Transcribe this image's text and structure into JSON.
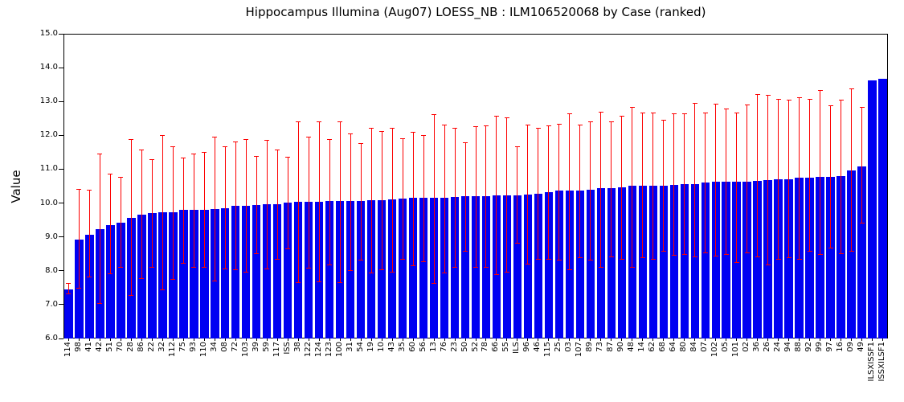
{
  "figure": {
    "title": "Hippocampus Illumina (Aug07) LOESS_NB : ILM106520068 by Case (ranked)",
    "ylabel": "Value"
  },
  "chart_data": {
    "type": "bar",
    "title": "Hippocampus Illumina (Aug07) LOESS_NB : ILM106520068 by Case (ranked)",
    "xlabel": "",
    "ylabel": "Value",
    "ylim": [
      6.0,
      15.0
    ],
    "ytick_labels": [
      "6.0",
      "7.0",
      "8.0",
      "9.0",
      "10.0",
      "11.0",
      "12.0",
      "13.0",
      "14.0",
      "15.0"
    ],
    "grid": false,
    "legend": "none",
    "bar_color": "#0000f2",
    "error_color": "#fd0000",
    "categories": [
      "114",
      "98",
      "41",
      "42",
      "51",
      "70",
      "28",
      "86",
      "22",
      "32",
      "112",
      "75",
      "93",
      "110",
      "34",
      "08",
      "72",
      "103",
      "39",
      "59",
      "117",
      "ISS",
      "38",
      "122",
      "124",
      "123",
      "100",
      "31",
      "54",
      "19",
      "10",
      "43",
      "35",
      "60",
      "56",
      "13",
      "76",
      "23",
      "50",
      "52",
      "78",
      "66",
      "55",
      "ILS",
      "96",
      "46",
      "115",
      "25",
      "03",
      "107",
      "89",
      "73",
      "87",
      "90",
      "48",
      "14",
      "62",
      "68",
      "64",
      "80",
      "84",
      "07",
      "102",
      "05",
      "101",
      "02",
      "36",
      "26",
      "24",
      "94",
      "88",
      "92",
      "99",
      "97",
      "16",
      "09",
      "49",
      "ILSXISSF1",
      "ISSXILSF1"
    ],
    "values": [
      7.45,
      8.93,
      9.06,
      9.22,
      9.36,
      9.41,
      9.57,
      9.66,
      9.7,
      9.72,
      9.73,
      9.79,
      9.81,
      9.81,
      9.83,
      9.85,
      9.91,
      9.92,
      9.95,
      9.96,
      9.97,
      10.01,
      10.03,
      10.03,
      10.04,
      10.05,
      10.05,
      10.06,
      10.06,
      10.09,
      10.09,
      10.11,
      10.13,
      10.15,
      10.15,
      10.15,
      10.16,
      10.17,
      10.2,
      10.21,
      10.21,
      10.22,
      10.23,
      10.23,
      10.24,
      10.28,
      10.32,
      10.36,
      10.36,
      10.38,
      10.4,
      10.43,
      10.43,
      10.47,
      10.51,
      10.51,
      10.51,
      10.52,
      10.54,
      10.55,
      10.57,
      10.6,
      10.62,
      10.63,
      10.63,
      10.63,
      10.65,
      10.68,
      10.69,
      10.71,
      10.74,
      10.76,
      10.77,
      10.77,
      10.79,
      10.96,
      11.07,
      13.62,
      13.66
    ],
    "error_top": [
      7.62,
      10.4,
      10.37,
      11.44,
      10.85,
      10.75,
      11.87,
      11.56,
      11.28,
      11.99,
      11.67,
      11.34,
      11.46,
      11.5,
      11.96,
      11.66,
      11.8,
      11.88,
      11.37,
      11.85,
      11.56,
      11.36,
      12.39,
      11.96,
      12.39,
      11.88,
      12.41,
      12.05,
      11.75,
      12.21,
      12.12,
      12.21,
      11.9,
      12.1,
      11.99,
      12.61,
      12.31,
      12.21,
      11.78,
      12.25,
      12.27,
      12.57,
      12.53,
      11.66,
      12.31,
      12.2,
      12.29,
      12.33,
      12.63,
      12.31,
      12.41,
      12.69,
      12.39,
      12.57,
      12.83,
      12.67,
      12.67,
      12.45,
      12.63,
      12.63,
      12.95,
      12.67,
      12.93,
      12.79,
      12.67,
      12.89,
      13.21,
      13.19,
      13.06,
      13.05,
      13.11,
      13.06,
      13.33,
      12.87,
      13.05,
      13.38,
      12.83,
      null,
      null
    ],
    "error_bottom": [
      7.32,
      7.49,
      7.81,
      7.04,
      7.9,
      8.1,
      7.28,
      7.77,
      8.09,
      7.44,
      7.75,
      8.23,
      8.1,
      8.09,
      7.69,
      8.05,
      8.02,
      7.95,
      8.5,
      8.05,
      8.34,
      8.64,
      7.65,
      8.07,
      7.67,
      8.17,
      7.65,
      8.01,
      8.31,
      7.93,
      8.02,
      7.95,
      8.34,
      8.14,
      8.26,
      7.63,
      7.93,
      8.1,
      8.58,
      8.1,
      8.09,
      7.89,
      7.95,
      8.82,
      8.19,
      8.34,
      8.33,
      8.31,
      8.02,
      8.39,
      8.31,
      8.1,
      8.42,
      8.34,
      8.1,
      8.38,
      8.35,
      8.58,
      8.45,
      8.49,
      8.4,
      8.53,
      8.43,
      8.48,
      8.24,
      8.53,
      8.4,
      8.17,
      8.34,
      8.38,
      8.34,
      8.58,
      8.48,
      8.66,
      8.5,
      8.58,
      9.41,
      null,
      null
    ]
  }
}
